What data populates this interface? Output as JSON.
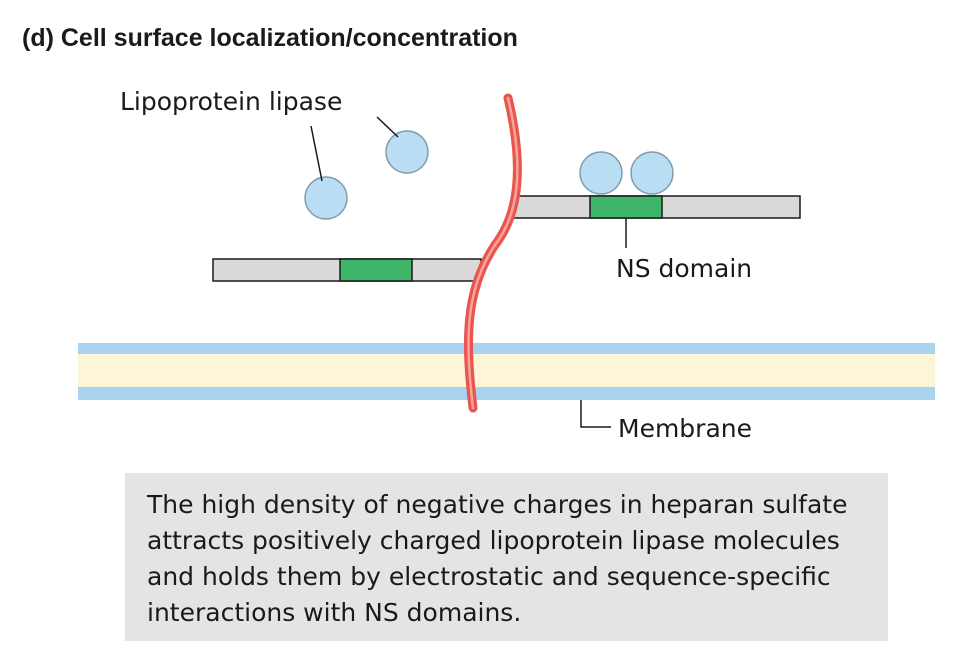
{
  "title": "(d) Cell surface localization/concentration",
  "labels": {
    "lipase": "Lipoprotein lipase",
    "ns_domain": "NS domain",
    "membrane": "Membrane"
  },
  "caption": "The high density of negative charges in heparan sulfate attracts positively charged lipoprotein lipase molecules and holds them by electrostatic and sequence-specific interactions with NS domains.",
  "colors": {
    "lipase_fill": "#b9def3",
    "lipase_stroke": "#7f9bae",
    "chain_fill": "#d9d9d9",
    "ns_domain": "#3fb56a",
    "protein_core": "#e9564f",
    "protein_core_highlight": "#f7a59c",
    "membrane_outer": "#a9d3ef",
    "membrane_inner": "#fdf5d8",
    "caption_bg": "#e3e4e5"
  }
}
